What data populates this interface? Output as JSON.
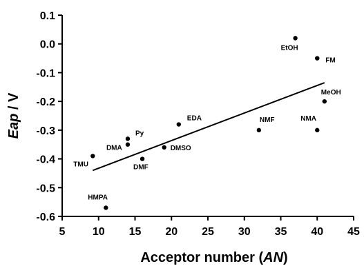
{
  "chart_data": {
    "type": "scatter",
    "title": "",
    "xlabel_parts": [
      "Acceptor number (",
      "AN",
      ")"
    ],
    "ylabel_parts": [
      "Eap",
      " / V"
    ],
    "xlim": [
      5,
      45
    ],
    "ylim": [
      -0.6,
      0.1
    ],
    "xticks": [
      "5",
      "10",
      "15",
      "20",
      "25",
      "30",
      "35",
      "40",
      "45"
    ],
    "yticks": [
      "0.1",
      "0.0",
      "-0.1",
      "-0.2",
      "-0.3",
      "-0.4",
      "-0.5",
      "-0.6"
    ],
    "grid": false,
    "legend": false,
    "points": [
      {
        "label": "TMU",
        "x": 9.2,
        "y": -0.39
      },
      {
        "label": "HMPA",
        "x": 11.0,
        "y": -0.57
      },
      {
        "label": "DMA",
        "x": 14.0,
        "y": -0.35
      },
      {
        "label": "Py",
        "x": 14.0,
        "y": -0.33
      },
      {
        "label": "DMF",
        "x": 16.0,
        "y": -0.4
      },
      {
        "label": "DMSO",
        "x": 19.0,
        "y": -0.36
      },
      {
        "label": "EDA",
        "x": 21.0,
        "y": -0.28
      },
      {
        "label": "NMF",
        "x": 32.0,
        "y": -0.3
      },
      {
        "label": "EtOH",
        "x": 37.0,
        "y": 0.02
      },
      {
        "label": "FM",
        "x": 40.0,
        "y": -0.05
      },
      {
        "label": "NMA",
        "x": 40.0,
        "y": -0.3
      },
      {
        "label": "MeOH",
        "x": 41.0,
        "y": -0.2
      }
    ],
    "fit_line": {
      "x": [
        9.2,
        41.0
      ],
      "y": [
        -0.44,
        -0.135
      ]
    },
    "colors": {
      "points": "#000000",
      "line": "#000000",
      "axes": "#000000"
    }
  }
}
